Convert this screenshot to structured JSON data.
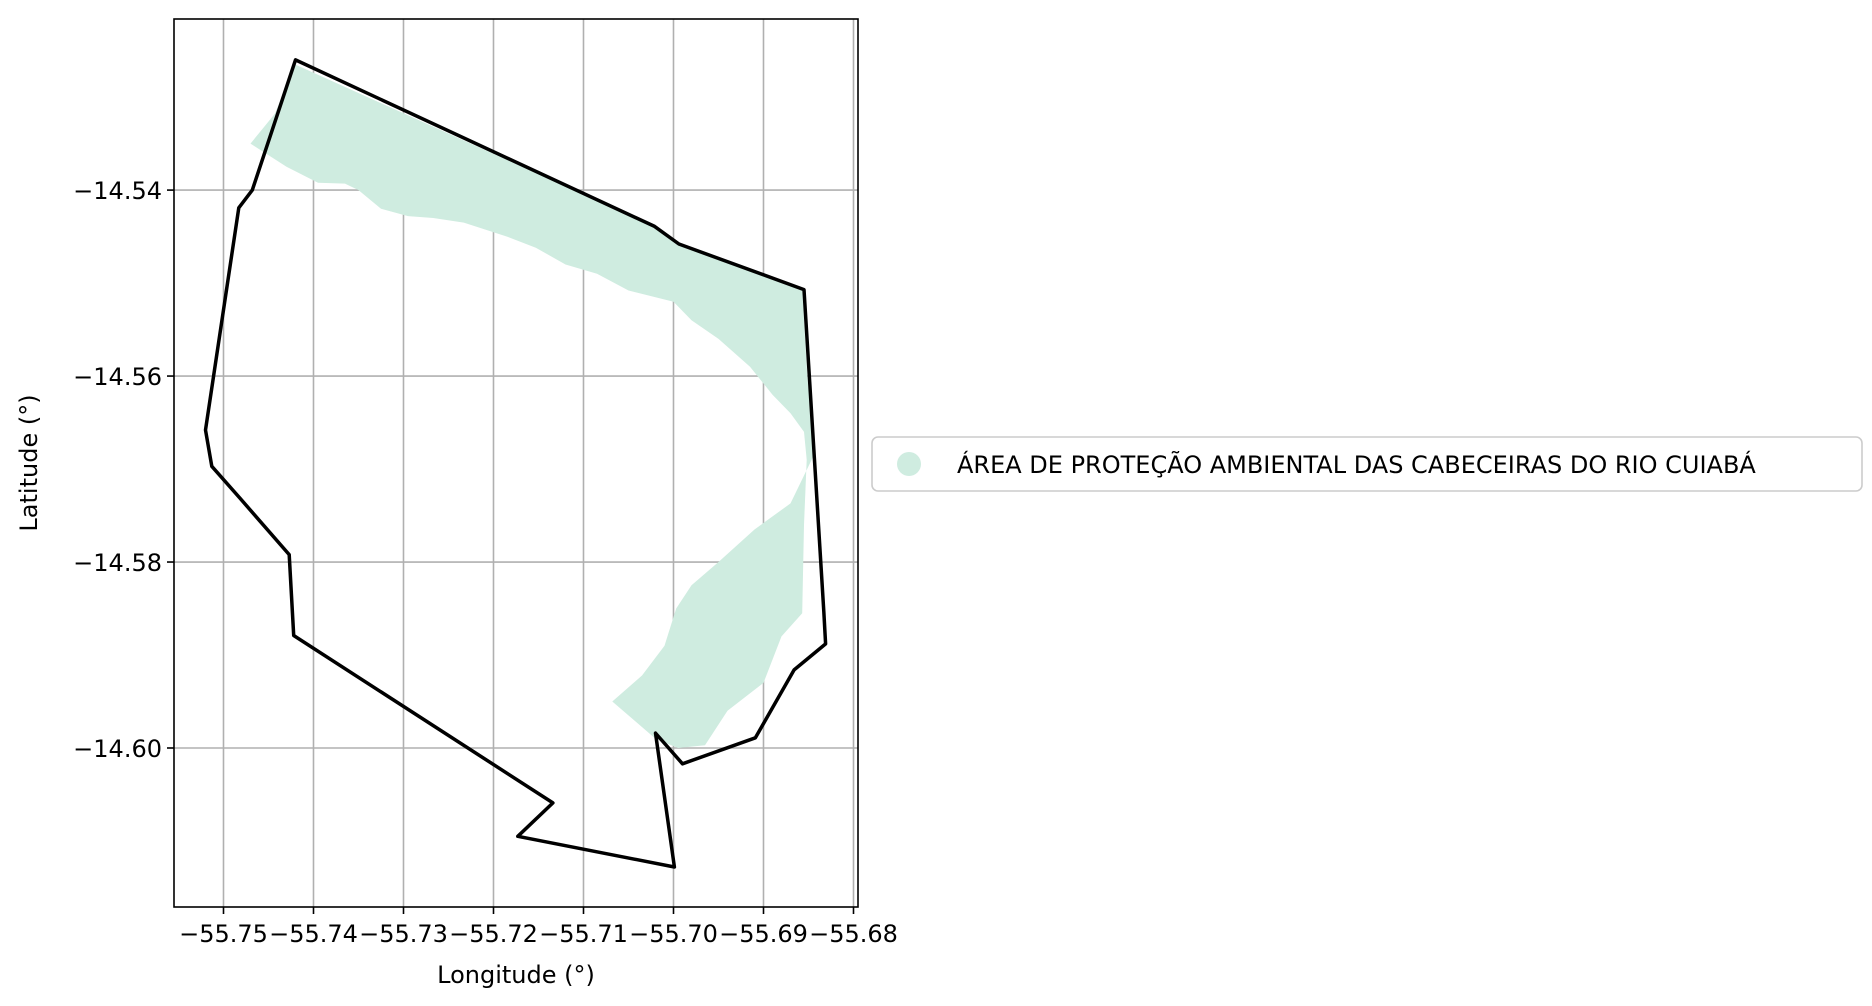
{
  "chart_data": {
    "type": "map",
    "xlabel": "Longitude (°)",
    "ylabel": "Latitude (°)",
    "xlim": [
      -55.7555,
      -55.6795
    ],
    "ylim": [
      -14.6171,
      -14.5216
    ],
    "grid": true,
    "x_ticks": [
      -55.75,
      -55.74,
      -55.73,
      -55.72,
      -55.71,
      -55.7,
      -55.69,
      -55.68
    ],
    "x_tick_labels": [
      "−55.75",
      "−55.74",
      "−55.73",
      "−55.72",
      "−55.71",
      "−55.70",
      "−55.69",
      "−55.68"
    ],
    "y_ticks": [
      -14.54,
      -14.56,
      -14.58,
      -14.6
    ],
    "y_tick_labels": [
      "−14.54",
      "−14.56",
      "−14.58",
      "−14.60"
    ],
    "legend": {
      "placement": "right",
      "entries": [
        {
          "label": "ÁREA DE PROTEÇÃO AMBIENTAL DAS CABECEIRAS DO RIO CUIABÁ",
          "color": "#cfece0"
        }
      ]
    },
    "boundary": {
      "stroke": "#000000",
      "points": [
        [
          -55.742,
          -14.526
        ],
        [
          -55.7021,
          -14.5439
        ],
        [
          -55.6994,
          -14.5458
        ],
        [
          -55.6855,
          -14.5507
        ],
        [
          -55.6833,
          -14.5853
        ],
        [
          -55.6831,
          -14.5888
        ],
        [
          -55.6866,
          -14.5916
        ],
        [
          -55.6909,
          -14.5989
        ],
        [
          -55.699,
          -14.6017
        ],
        [
          -55.702,
          -14.5984
        ],
        [
          -55.6999,
          -14.6128
        ],
        [
          -55.7173,
          -14.6095
        ],
        [
          -55.7134,
          -14.6059
        ],
        [
          -55.7422,
          -14.5879
        ],
        [
          -55.7427,
          -14.5792
        ],
        [
          -55.7482,
          -14.5731
        ],
        [
          -55.7513,
          -14.5697
        ],
        [
          -55.752,
          -14.5658
        ],
        [
          -55.7483,
          -14.5419
        ],
        [
          -55.7468,
          -14.54
        ],
        [
          -55.742,
          -14.526
        ]
      ]
    },
    "protected_area": {
      "fill": "#cfece0",
      "points": [
        [
          -55.742,
          -14.5265
        ],
        [
          -55.7021,
          -14.5439
        ],
        [
          -55.6994,
          -14.5458
        ],
        [
          -55.6857,
          -14.5507
        ],
        [
          -55.6851,
          -14.5605
        ],
        [
          -55.6842,
          -14.5681
        ],
        [
          -55.687,
          -14.5737
        ],
        [
          -55.691,
          -14.5765
        ],
        [
          -55.695,
          -14.58
        ],
        [
          -55.698,
          -14.5825
        ],
        [
          -55.6997,
          -14.585
        ],
        [
          -55.701,
          -14.589
        ],
        [
          -55.7035,
          -14.5922
        ],
        [
          -55.7068,
          -14.595
        ],
        [
          -55.702,
          -14.599
        ],
        [
          -55.6995,
          -14.6
        ],
        [
          -55.6965,
          -14.5997
        ],
        [
          -55.694,
          -14.596
        ],
        [
          -55.69,
          -14.593
        ],
        [
          -55.688,
          -14.588
        ],
        [
          -55.6857,
          -14.5855
        ],
        [
          -55.6855,
          -14.576
        ],
        [
          -55.6852,
          -14.569
        ],
        [
          -55.6855,
          -14.566
        ],
        [
          -55.687,
          -14.564
        ],
        [
          -55.689,
          -14.562
        ],
        [
          -55.6915,
          -14.559
        ],
        [
          -55.695,
          -14.556
        ],
        [
          -55.698,
          -14.554
        ],
        [
          -55.7,
          -14.552
        ],
        [
          -55.705,
          -14.5508
        ],
        [
          -55.7085,
          -14.549
        ],
        [
          -55.712,
          -14.548
        ],
        [
          -55.7153,
          -14.5462
        ],
        [
          -55.7185,
          -14.545
        ],
        [
          -55.7233,
          -14.5435
        ],
        [
          -55.7267,
          -14.543
        ],
        [
          -55.7295,
          -14.5428
        ],
        [
          -55.7325,
          -14.542
        ],
        [
          -55.735,
          -14.54
        ],
        [
          -55.7365,
          -14.5393
        ],
        [
          -55.7395,
          -14.5392
        ],
        [
          -55.743,
          -14.5375
        ],
        [
          -55.747,
          -14.535
        ],
        [
          -55.7443,
          -14.5318
        ],
        [
          -55.742,
          -14.5265
        ]
      ]
    }
  }
}
